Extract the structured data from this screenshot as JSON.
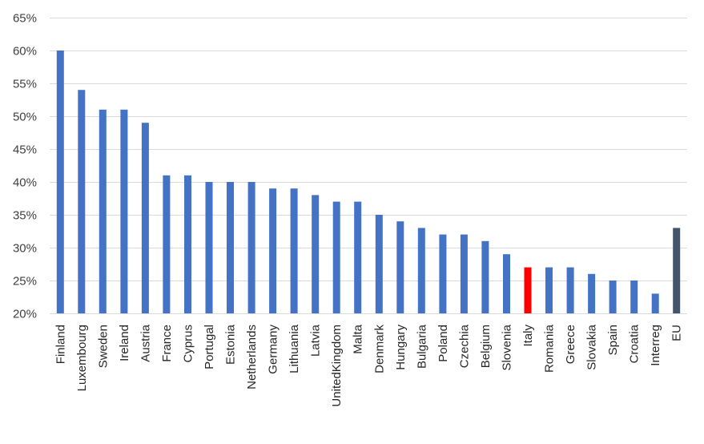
{
  "chart_data": {
    "type": "bar",
    "title": "",
    "xlabel": "",
    "ylabel": "",
    "ylim": [
      20,
      65
    ],
    "yticks": [
      20,
      25,
      30,
      35,
      40,
      45,
      50,
      55,
      60,
      65
    ],
    "ytick_labels": [
      "20%",
      "25%",
      "30%",
      "35%",
      "40%",
      "45%",
      "50%",
      "55%",
      "60%",
      "65%"
    ],
    "grid": true,
    "categories": [
      "Finland",
      "Luxembourg",
      "Sweden",
      "Ireland",
      "Austria",
      "France",
      "Cyprus",
      "Portugal",
      "Estonia",
      "Netherlands",
      "Germany",
      "Lithuania",
      "Latvia",
      "UnitedKingdom",
      "Malta",
      "Denmark",
      "Hungary",
      "Bulgaria",
      "Poland",
      "Czechia",
      "Belgium",
      "Slovenia",
      "Italy",
      "Romania",
      "Greece",
      "Slovakia",
      "Spain",
      "Croatia",
      "Interreg",
      "EU"
    ],
    "values": [
      60,
      54,
      51,
      51,
      49,
      41,
      41,
      40,
      40,
      40,
      39,
      39,
      38,
      37,
      37,
      35,
      34,
      33,
      32,
      32,
      31,
      29,
      27,
      27,
      27,
      26,
      25,
      25,
      23,
      33
    ],
    "colors": {
      "default": "#4472c4",
      "highlight": "#ff0000",
      "aggregate": "#44546a"
    },
    "bar_colors": {
      "Italy": "highlight",
      "EU": "aggregate"
    }
  }
}
